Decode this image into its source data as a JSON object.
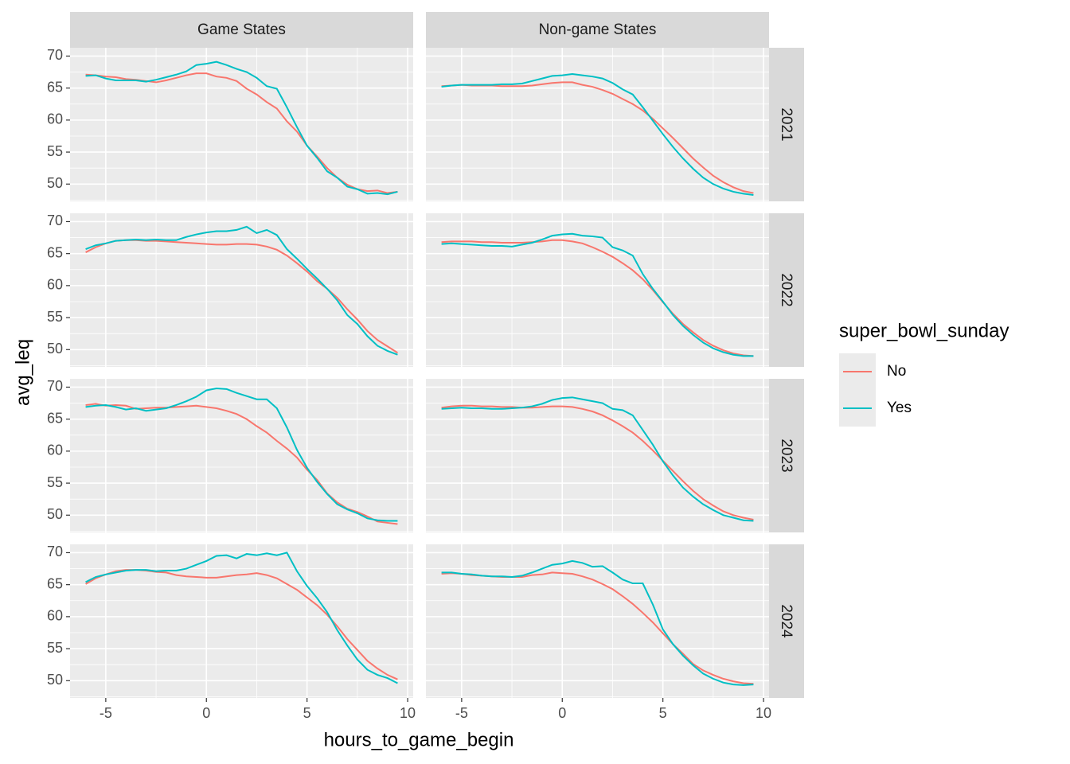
{
  "chart_data": {
    "type": "line",
    "x_label": "hours_to_game_begin",
    "y_label": "avg_leq",
    "legend_title": "super_bowl_sunday",
    "columns": [
      "Game States",
      "Non-game States"
    ],
    "rows": [
      "2021",
      "2022",
      "2023",
      "2024"
    ],
    "x": [
      -6,
      -5.5,
      -5,
      -4.5,
      -4,
      -3.5,
      -3,
      -2.5,
      -2,
      -1.5,
      -1,
      -0.5,
      0,
      0.5,
      1,
      1.5,
      2,
      2.5,
      3,
      3.5,
      4,
      4.5,
      5,
      5.5,
      6,
      6.5,
      7,
      7.5,
      8,
      8.5,
      9,
      9.5
    ],
    "xlim": [
      -6.775,
      10.275
    ],
    "xticks": [
      -5,
      0,
      5,
      10
    ],
    "xminor": [
      -7.5,
      -2.5,
      2.5,
      7.5
    ],
    "ylim": [
      47.3,
      71.3
    ],
    "yticks": [
      50,
      55,
      60,
      65,
      70
    ],
    "yminor": [
      47.5,
      52.5,
      57.5,
      62.5,
      67.5
    ],
    "grid": true,
    "panels": [
      {
        "series": [
          {
            "name": "No",
            "color": "#F8766D",
            "values": [
              67.1,
              67.0,
              66.8,
              66.7,
              66.4,
              66.3,
              66.1,
              65.9,
              66.2,
              66.6,
              67.0,
              67.3,
              67.3,
              66.8,
              66.6,
              66.1,
              64.9,
              64.0,
              62.8,
              61.8,
              59.8,
              58.2,
              56.0,
              54.3,
              52.5,
              51.0,
              49.9,
              49.2,
              48.9,
              49.0,
              48.6,
              48.8
            ]
          },
          {
            "name": "Yes",
            "color": "#00BFC4",
            "values": [
              66.9,
              67.0,
              66.5,
              66.2,
              66.2,
              66.2,
              66.0,
              66.3,
              66.7,
              67.1,
              67.6,
              68.6,
              68.8,
              69.1,
              68.6,
              68.0,
              67.5,
              66.6,
              65.3,
              64.9,
              62.0,
              58.9,
              56.0,
              54.1,
              52.0,
              51.0,
              49.6,
              49.2,
              48.5,
              48.6,
              48.4,
              48.8
            ]
          }
        ]
      },
      {
        "series": [
          {
            "name": "No",
            "color": "#F8766D",
            "values": [
              65.3,
              65.4,
              65.5,
              65.4,
              65.4,
              65.4,
              65.3,
              65.3,
              65.3,
              65.4,
              65.6,
              65.8,
              65.9,
              65.9,
              65.5,
              65.2,
              64.7,
              64.1,
              63.3,
              62.5,
              61.5,
              60.2,
              58.7,
              57.2,
              55.6,
              54.0,
              52.6,
              51.3,
              50.3,
              49.5,
              48.9,
              48.6
            ]
          },
          {
            "name": "Yes",
            "color": "#00BFC4",
            "values": [
              65.2,
              65.4,
              65.5,
              65.5,
              65.5,
              65.5,
              65.6,
              65.6,
              65.7,
              66.1,
              66.5,
              66.9,
              67.0,
              67.2,
              67.0,
              66.8,
              66.5,
              65.8,
              64.8,
              64.0,
              62.0,
              59.9,
              57.8,
              55.8,
              54.0,
              52.4,
              51.0,
              50.0,
              49.3,
              48.8,
              48.5,
              48.3
            ]
          }
        ]
      },
      {
        "series": [
          {
            "name": "No",
            "color": "#F8766D",
            "values": [
              65.2,
              66.0,
              66.6,
              67.0,
              67.1,
              67.1,
              67.0,
              67.0,
              66.9,
              66.8,
              66.7,
              66.6,
              66.5,
              66.4,
              66.4,
              66.5,
              66.5,
              66.4,
              66.1,
              65.6,
              64.7,
              63.5,
              62.2,
              60.7,
              59.5,
              58.1,
              56.3,
              54.7,
              52.9,
              51.5,
              50.5,
              49.5
            ]
          },
          {
            "name": "Yes",
            "color": "#00BFC4",
            "values": [
              65.7,
              66.3,
              66.6,
              67.0,
              67.1,
              67.2,
              67.1,
              67.2,
              67.1,
              67.1,
              67.6,
              68.0,
              68.3,
              68.5,
              68.5,
              68.7,
              69.2,
              68.2,
              68.7,
              67.9,
              65.7,
              64.2,
              62.6,
              61.1,
              59.5,
              57.7,
              55.4,
              54.0,
              52.1,
              50.6,
              49.8,
              49.2
            ]
          }
        ]
      },
      {
        "series": [
          {
            "name": "No",
            "color": "#F8766D",
            "values": [
              66.8,
              66.9,
              66.9,
              66.9,
              66.8,
              66.8,
              66.7,
              66.7,
              66.7,
              66.8,
              66.9,
              67.1,
              67.1,
              66.9,
              66.6,
              66.0,
              65.3,
              64.5,
              63.5,
              62.4,
              61.0,
              59.3,
              57.4,
              55.6,
              54.0,
              52.7,
              51.5,
              50.6,
              49.9,
              49.4,
              49.1,
              49.0
            ]
          },
          {
            "name": "Yes",
            "color": "#00BFC4",
            "values": [
              66.5,
              66.6,
              66.5,
              66.4,
              66.3,
              66.2,
              66.2,
              66.1,
              66.4,
              66.7,
              67.2,
              67.8,
              68.0,
              68.1,
              67.8,
              67.7,
              67.5,
              66.0,
              65.5,
              64.7,
              61.8,
              59.5,
              57.5,
              55.4,
              53.7,
              52.3,
              51.1,
              50.2,
              49.6,
              49.2,
              49.0,
              49.0
            ]
          }
        ]
      },
      {
        "series": [
          {
            "name": "No",
            "color": "#F8766D",
            "values": [
              67.2,
              67.4,
              67.1,
              67.2,
              67.1,
              66.6,
              66.7,
              66.8,
              66.8,
              66.9,
              67.0,
              67.1,
              66.9,
              66.7,
              66.3,
              65.8,
              65.0,
              63.9,
              62.9,
              61.6,
              60.4,
              59.0,
              57.1,
              55.5,
              53.4,
              52.0,
              51.0,
              50.5,
              49.8,
              49.0,
              48.8,
              48.6
            ]
          },
          {
            "name": "Yes",
            "color": "#00BFC4",
            "values": [
              66.9,
              67.1,
              67.2,
              66.9,
              66.5,
              66.7,
              66.3,
              66.5,
              66.7,
              67.2,
              67.8,
              68.5,
              69.5,
              69.8,
              69.7,
              69.1,
              68.6,
              68.1,
              68.1,
              66.7,
              63.7,
              60.2,
              57.4,
              55.2,
              53.3,
              51.7,
              50.9,
              50.3,
              49.5,
              49.2,
              49.1,
              49.1
            ]
          }
        ]
      },
      {
        "series": [
          {
            "name": "No",
            "color": "#F8766D",
            "values": [
              66.8,
              67.0,
              67.1,
              67.1,
              67.0,
              67.0,
              66.9,
              66.9,
              66.8,
              66.8,
              66.9,
              67.0,
              67.0,
              66.9,
              66.6,
              66.2,
              65.6,
              64.8,
              63.9,
              62.9,
              61.6,
              60.1,
              58.5,
              56.9,
              55.3,
              53.8,
              52.5,
              51.5,
              50.6,
              50.0,
              49.6,
              49.3
            ]
          },
          {
            "name": "Yes",
            "color": "#00BFC4",
            "values": [
              66.6,
              66.7,
              66.8,
              66.7,
              66.7,
              66.6,
              66.6,
              66.7,
              66.8,
              67.0,
              67.4,
              68.0,
              68.3,
              68.4,
              68.1,
              67.8,
              67.5,
              66.6,
              66.4,
              65.6,
              63.3,
              61.0,
              58.4,
              56.2,
              54.3,
              52.9,
              51.7,
              50.8,
              50.0,
              49.6,
              49.2,
              49.1
            ]
          }
        ]
      },
      {
        "series": [
          {
            "name": "No",
            "color": "#F8766D",
            "values": [
              65.1,
              66.0,
              66.6,
              67.1,
              67.3,
              67.3,
              67.2,
              67.0,
              66.9,
              66.5,
              66.3,
              66.2,
              66.1,
              66.1,
              66.3,
              66.5,
              66.6,
              66.8,
              66.5,
              66.0,
              65.1,
              64.2,
              63.0,
              61.8,
              60.3,
              58.5,
              56.5,
              54.8,
              53.1,
              51.9,
              50.9,
              50.2
            ]
          },
          {
            "name": "Yes",
            "color": "#00BFC4",
            "values": [
              65.4,
              66.2,
              66.6,
              66.9,
              67.2,
              67.3,
              67.3,
              67.1,
              67.2,
              67.2,
              67.5,
              68.1,
              68.7,
              69.5,
              69.6,
              69.1,
              69.8,
              69.6,
              69.9,
              69.6,
              70.0,
              67.1,
              64.8,
              62.9,
              60.7,
              57.9,
              55.5,
              53.3,
              51.7,
              50.9,
              50.4,
              49.6
            ]
          }
        ]
      },
      {
        "series": [
          {
            "name": "No",
            "color": "#F8766D",
            "values": [
              66.7,
              66.8,
              66.7,
              66.5,
              66.4,
              66.3,
              66.2,
              66.2,
              66.2,
              66.5,
              66.6,
              66.9,
              66.8,
              66.7,
              66.3,
              65.8,
              65.1,
              64.3,
              63.2,
              62.0,
              60.6,
              59.1,
              57.4,
              55.7,
              54.2,
              52.6,
              51.6,
              50.9,
              50.3,
              49.9,
              49.6,
              49.5
            ]
          },
          {
            "name": "Yes",
            "color": "#00BFC4",
            "values": [
              66.9,
              66.9,
              66.7,
              66.6,
              66.4,
              66.3,
              66.3,
              66.2,
              66.4,
              66.9,
              67.5,
              68.1,
              68.3,
              68.7,
              68.4,
              67.8,
              67.9,
              66.9,
              65.8,
              65.2,
              65.2,
              61.9,
              58.0,
              55.7,
              53.9,
              52.4,
              51.1,
              50.3,
              49.7,
              49.4,
              49.3,
              49.4
            ]
          }
        ]
      }
    ]
  }
}
